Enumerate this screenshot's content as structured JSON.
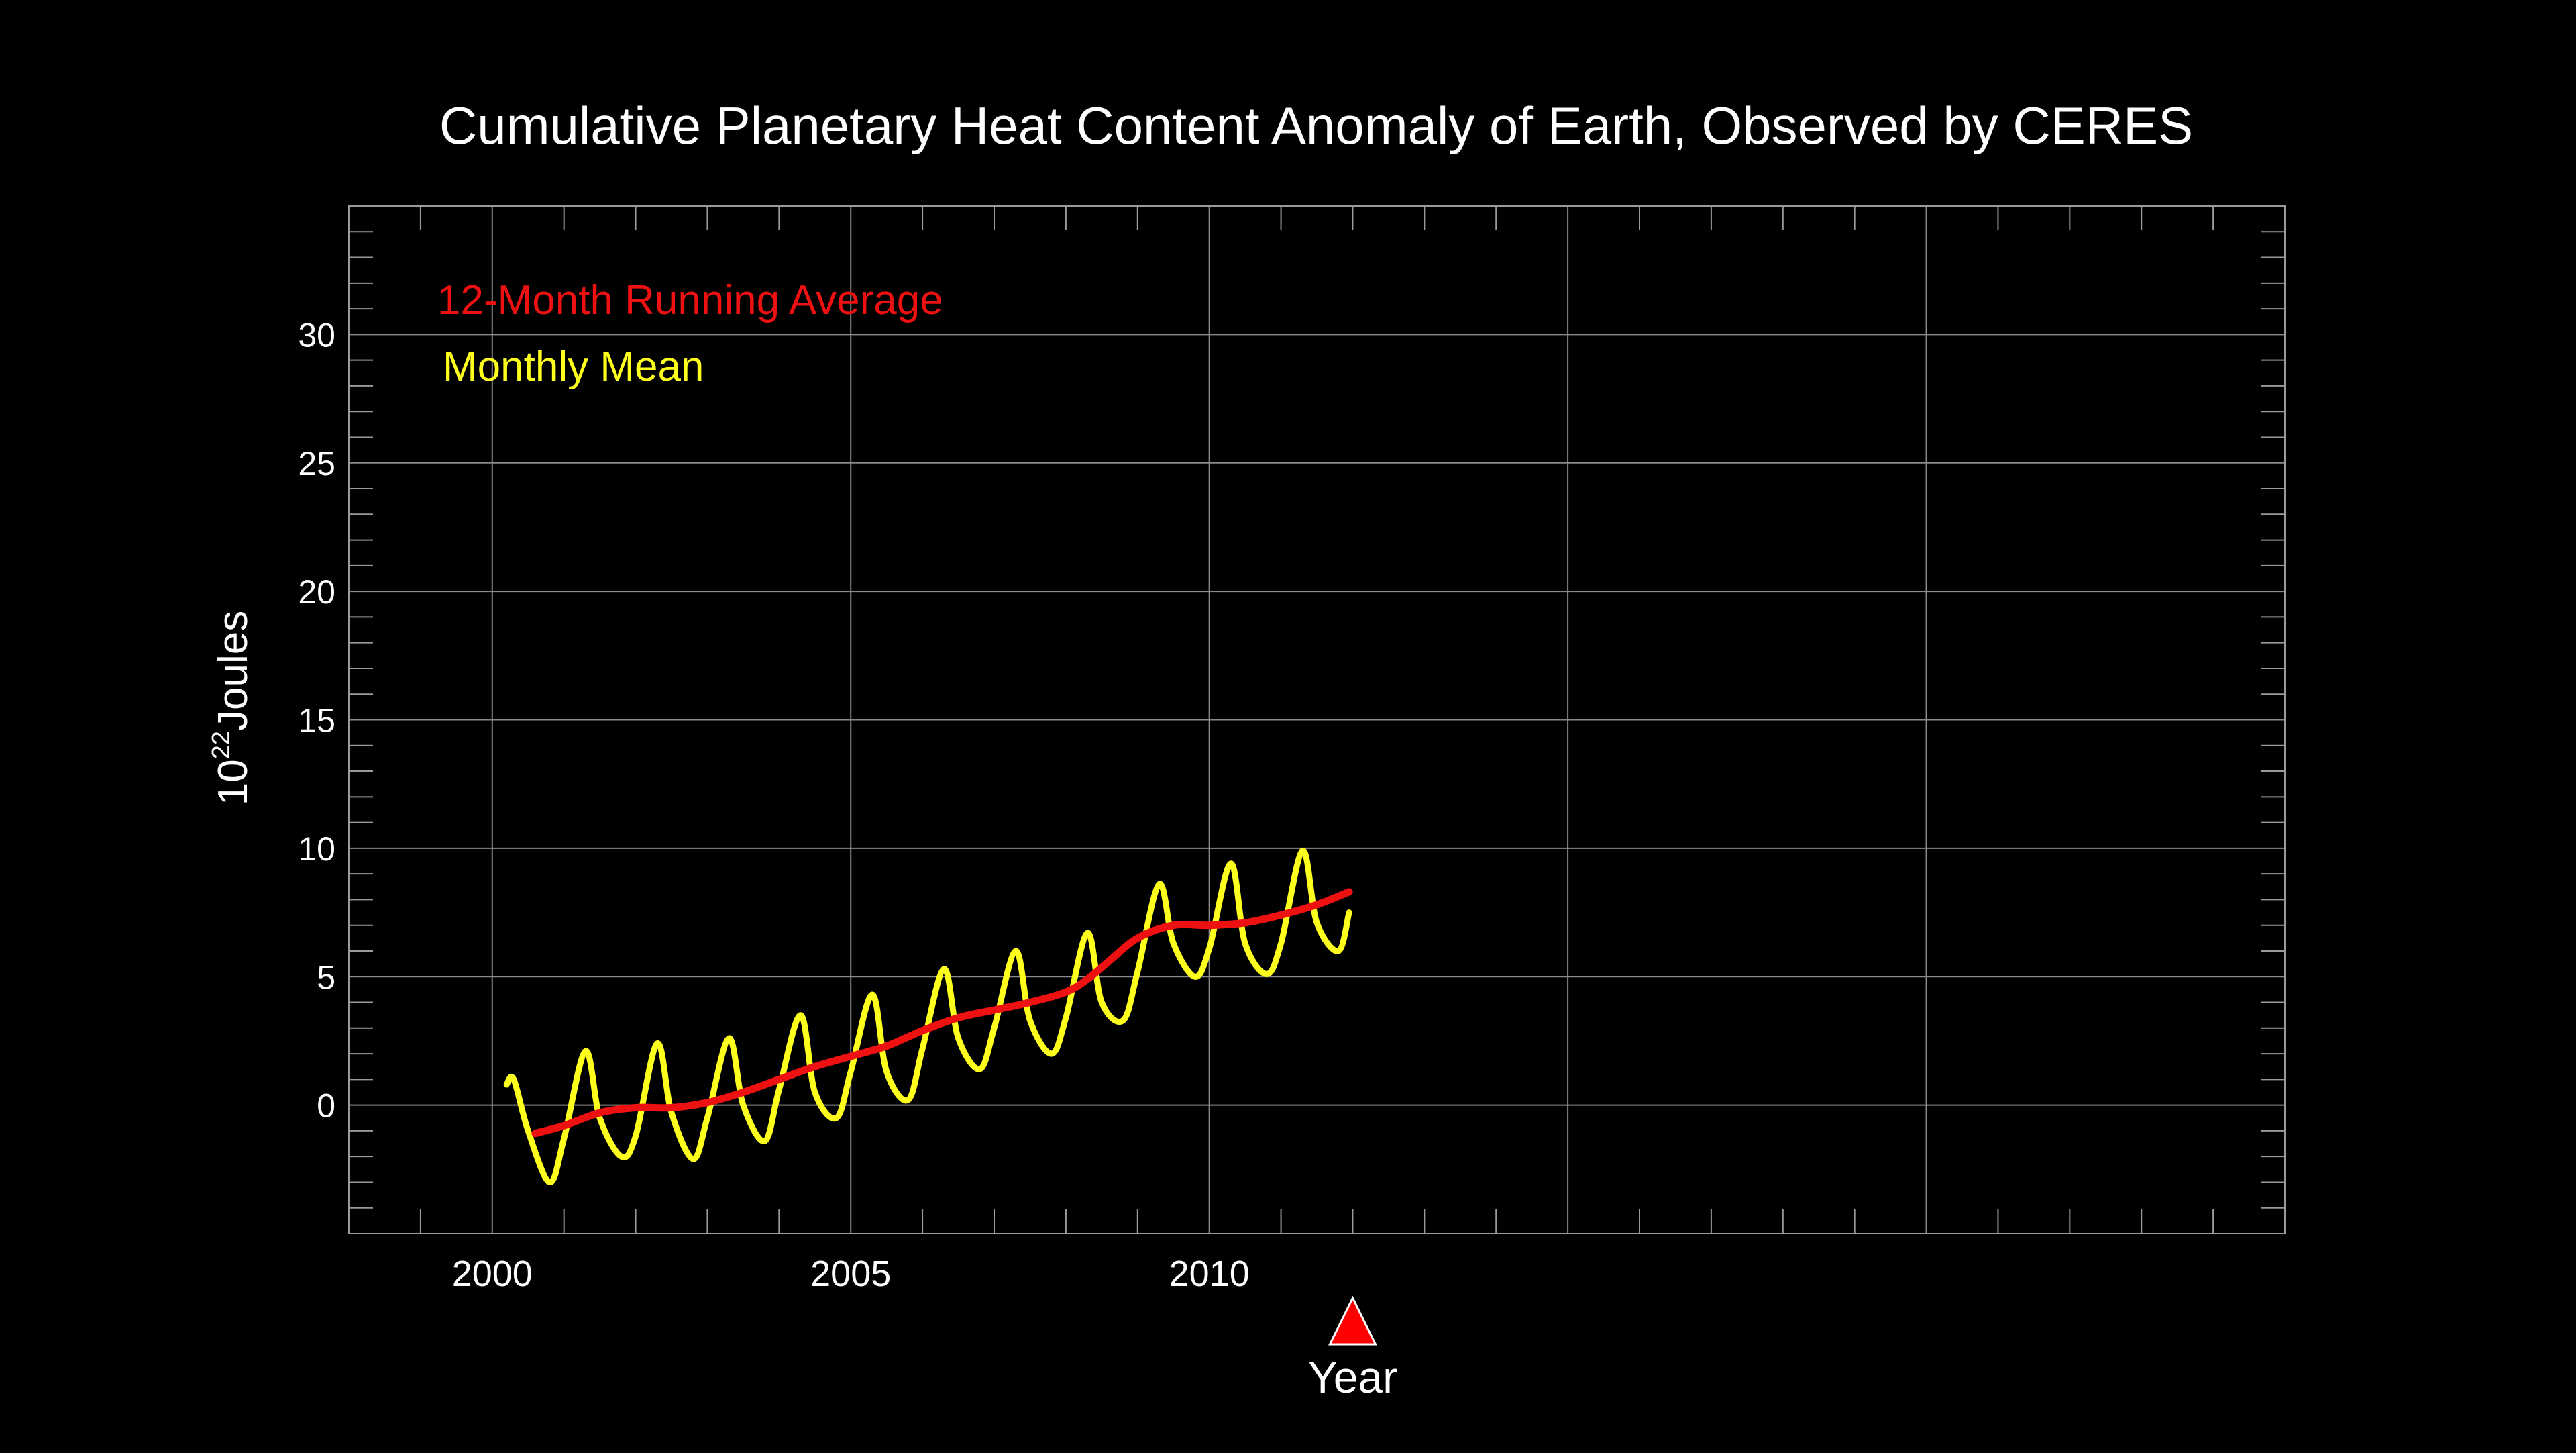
{
  "chart_data": {
    "type": "line",
    "title": "Cumulative Planetary Heat Content Anomaly of Earth, Observed by CERES",
    "ylabel": {
      "base": "10",
      "exponent": "22",
      "unit": "Joules"
    },
    "xlabel": "Year",
    "xlim": [
      1998,
      2025
    ],
    "ylim": [
      -5,
      35
    ],
    "x_ticks": [
      2000,
      2005,
      2010
    ],
    "y_ticks": [
      0,
      5,
      10,
      15,
      20,
      25,
      30
    ],
    "x_major_grid": [
      2000,
      2005,
      2010,
      2015,
      2020
    ],
    "grid": true,
    "current_year_marker": 2012,
    "legend_position": "top-left",
    "colors": {
      "background": "#000000",
      "axes": "#9a9a9a",
      "grid": "#8a8a8a",
      "text": "#ffffff",
      "marker": "#ff0000"
    },
    "series": [
      {
        "name": "Monthly Mean",
        "color": "#ffff1e",
        "x": [
          2000.2,
          2000.3,
          2000.5,
          2000.8,
          2001.0,
          2001.3,
          2001.5,
          2001.8,
          2002.0,
          2002.3,
          2002.5,
          2002.8,
          2003.0,
          2003.3,
          2003.5,
          2003.8,
          2004.0,
          2004.3,
          2004.5,
          2004.8,
          2005.0,
          2005.3,
          2005.5,
          2005.8,
          2006.0,
          2006.3,
          2006.5,
          2006.8,
          2007.0,
          2007.3,
          2007.5,
          2007.8,
          2008.0,
          2008.3,
          2008.5,
          2008.8,
          2009.0,
          2009.3,
          2009.5,
          2009.8,
          2010.0,
          2010.3,
          2010.5,
          2010.8,
          2011.0,
          2011.3,
          2011.5,
          2011.8,
          2011.95
        ],
        "y": [
          0.8,
          1.0,
          -1.0,
          -3.0,
          -1.3,
          2.1,
          -0.5,
          -2.0,
          -1.2,
          2.4,
          -0.3,
          -2.1,
          -0.5,
          2.6,
          0.0,
          -1.4,
          0.6,
          3.5,
          0.5,
          -0.5,
          1.3,
          4.3,
          1.3,
          0.2,
          2.2,
          5.3,
          2.6,
          1.4,
          3.0,
          6.0,
          3.3,
          2.0,
          3.4,
          6.7,
          4.0,
          3.3,
          5.2,
          8.6,
          6.3,
          5.0,
          6.1,
          9.4,
          6.3,
          5.1,
          6.3,
          9.9,
          7.1,
          6.0,
          7.5
        ]
      },
      {
        "name": "12-Month Running Average",
        "color": "#ee1111",
        "x": [
          2000.6,
          2001.0,
          2001.5,
          2002.0,
          2002.5,
          2003.0,
          2003.5,
          2004.0,
          2004.5,
          2005.0,
          2005.5,
          2006.0,
          2006.5,
          2007.0,
          2007.5,
          2008.0,
          2008.3,
          2008.6,
          2009.0,
          2009.5,
          2010.0,
          2010.5,
          2011.0,
          2011.5,
          2011.95
        ],
        "y": [
          -1.1,
          -0.8,
          -0.3,
          -0.1,
          -0.1,
          0.1,
          0.5,
          1.0,
          1.5,
          1.9,
          2.3,
          2.9,
          3.4,
          3.7,
          4.0,
          4.4,
          4.9,
          5.6,
          6.5,
          7.0,
          7.0,
          7.1,
          7.4,
          7.8,
          8.3
        ]
      }
    ]
  }
}
